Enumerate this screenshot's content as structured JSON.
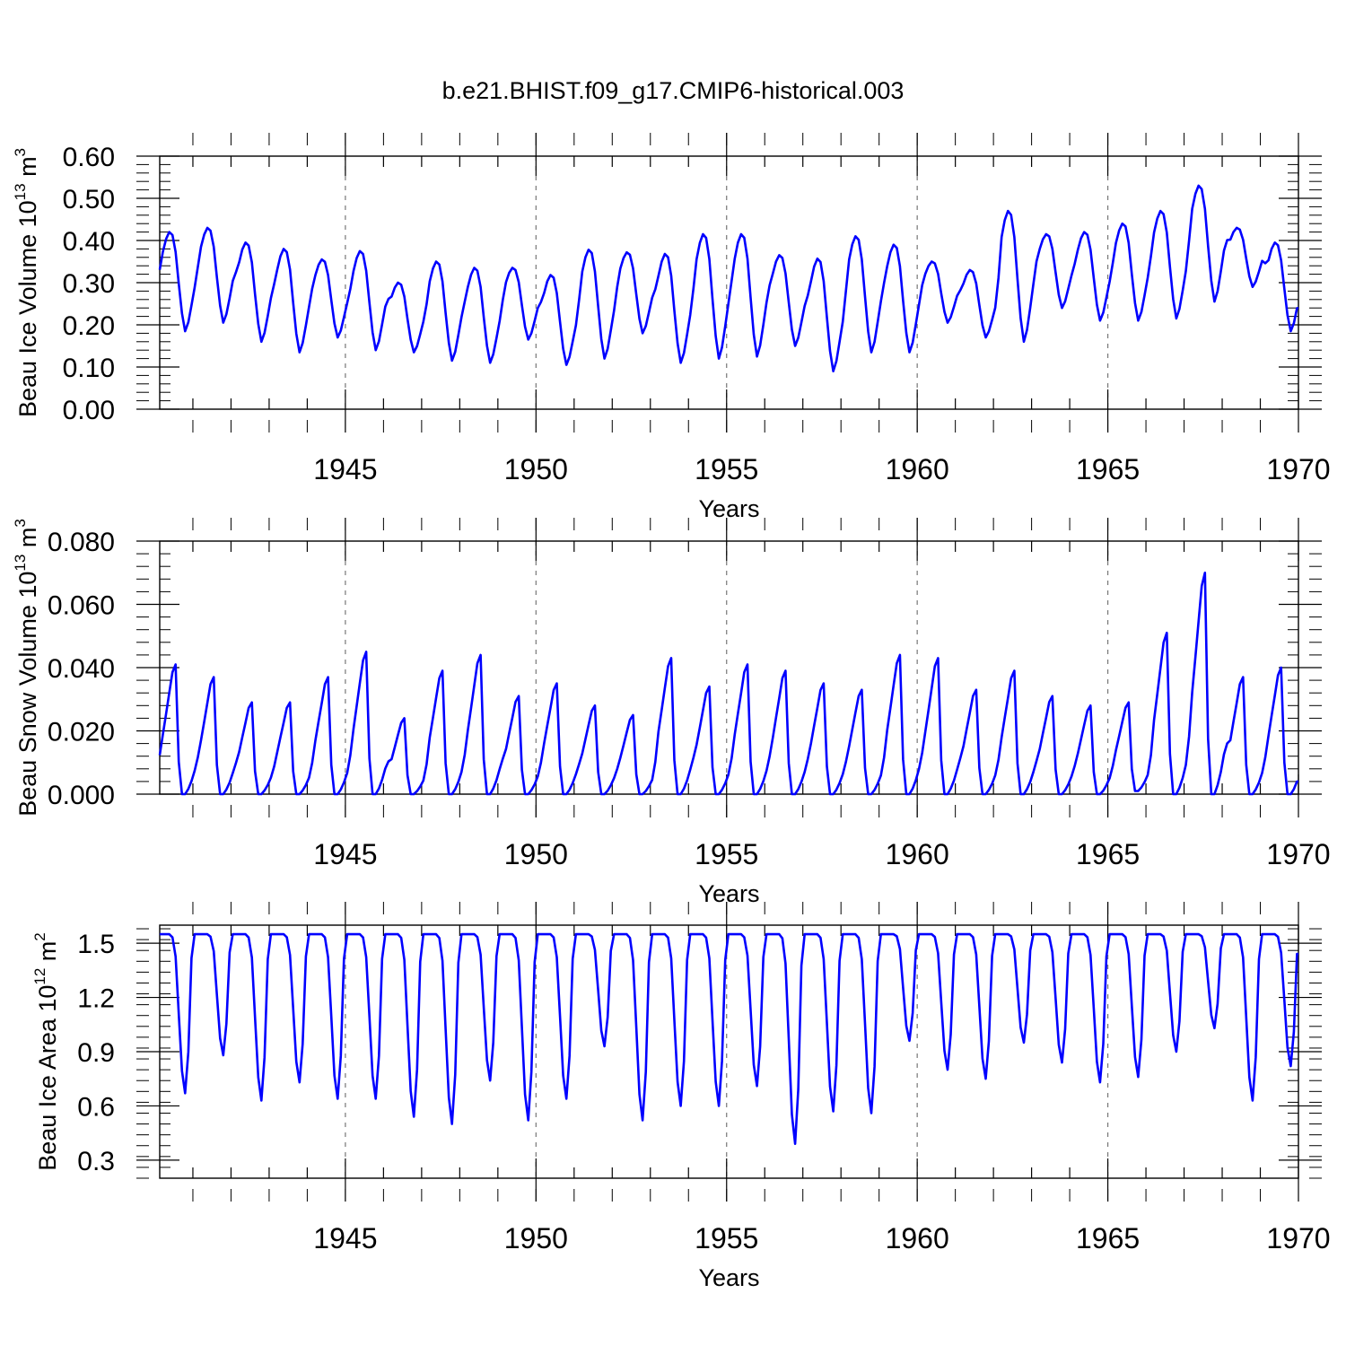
{
  "title": "b.e21.BHIST.f09_g17.CMIP6-historical.003",
  "colors": {
    "series": "#0000ff",
    "axes": "#000000",
    "grid": "#777777"
  },
  "chart_data": [
    {
      "type": "line",
      "name": "ice-volume",
      "ylabel": {
        "main": "Beau Ice Volume 10",
        "exp": "13",
        "unit": " m",
        "unit_exp": "3"
      },
      "xlabel": "Years",
      "xlim": [
        1940.13,
        1970.0
      ],
      "ylim": [
        0.0,
        0.6
      ],
      "yticks": [
        "0.00",
        "0.10",
        "0.20",
        "0.30",
        "0.40",
        "0.50",
        "0.60"
      ],
      "ytick_values": [
        0.0,
        0.1,
        0.2,
        0.3,
        0.4,
        0.5,
        0.6
      ],
      "xticks": [
        "1945",
        "1950",
        "1955",
        "1960",
        "1965",
        "1970"
      ],
      "xtick_values": [
        1945,
        1950,
        1955,
        1960,
        1965,
        1970
      ],
      "yearly_peaks": [
        0.42,
        0.43,
        0.395,
        0.38,
        0.355,
        0.375,
        0.3,
        0.35,
        0.335,
        0.335,
        0.318,
        0.378,
        0.372,
        0.368,
        0.415,
        0.415,
        0.365,
        0.357,
        0.41,
        0.39,
        0.35,
        0.33,
        0.47,
        0.415,
        0.42,
        0.44,
        0.47,
        0.53,
        0.43,
        0.395
      ],
      "yearly_troughs": [
        0.185,
        0.205,
        0.16,
        0.135,
        0.17,
        0.14,
        0.135,
        0.115,
        0.11,
        0.165,
        0.105,
        0.12,
        0.18,
        0.11,
        0.12,
        0.125,
        0.15,
        0.09,
        0.135,
        0.135,
        0.205,
        0.17,
        0.16,
        0.24,
        0.21,
        0.21,
        0.215,
        0.255,
        0.29,
        0.185
      ]
    },
    {
      "type": "line",
      "name": "snow-volume",
      "ylabel": {
        "main": "Beau Snow Volume 10",
        "exp": "13",
        "unit": " m",
        "unit_exp": "3"
      },
      "xlabel": "Years",
      "xlim": [
        1940.13,
        1970.0
      ],
      "ylim": [
        0.0,
        0.08
      ],
      "yticks": [
        "0.000",
        "0.020",
        "0.040",
        "0.060",
        "0.080"
      ],
      "ytick_values": [
        0.0,
        0.02,
        0.04,
        0.06,
        0.08
      ],
      "xticks": [
        "1945",
        "1950",
        "1955",
        "1960",
        "1965",
        "1970"
      ],
      "xtick_values": [
        1945,
        1950,
        1955,
        1960,
        1965,
        1970
      ],
      "yearly_peaks": [
        0.041,
        0.037,
        0.029,
        0.029,
        0.037,
        0.045,
        0.024,
        0.039,
        0.044,
        0.031,
        0.035,
        0.028,
        0.025,
        0.043,
        0.034,
        0.041,
        0.039,
        0.035,
        0.033,
        0.044,
        0.043,
        0.033,
        0.039,
        0.031,
        0.028,
        0.029,
        0.051,
        0.07,
        0.037,
        0.04
      ],
      "yearly_troughs": [
        0.0,
        0.0,
        0.0,
        0.0,
        0.0,
        0.0,
        0.0,
        0.0,
        0.0,
        0.0,
        0.0,
        0.0,
        0.0,
        0.0,
        0.0,
        0.0,
        0.0,
        0.0,
        0.0,
        0.0,
        0.0,
        0.0,
        0.0,
        0.0,
        0.0,
        0.001,
        0.0,
        0.0,
        0.0,
        0.0
      ]
    },
    {
      "type": "line",
      "name": "ice-area",
      "ylabel": {
        "main": "Beau Ice Area 10",
        "exp": "12",
        "unit": " m",
        "unit_exp": "2"
      },
      "xlabel": "Years",
      "xlim": [
        1940.13,
        1970.0
      ],
      "ylim": [
        0.2,
        1.6
      ],
      "yticks": [
        "0.3",
        "0.6",
        "0.9",
        "1.2",
        "1.5"
      ],
      "ytick_values": [
        0.3,
        0.6,
        0.9,
        1.2,
        1.5
      ],
      "xticks": [
        "1945",
        "1950",
        "1955",
        "1960",
        "1965",
        "1970"
      ],
      "xtick_values": [
        1945,
        1950,
        1955,
        1960,
        1965,
        1970
      ],
      "yearly_peaks": [
        1.55,
        1.55,
        1.55,
        1.55,
        1.55,
        1.55,
        1.55,
        1.55,
        1.55,
        1.55,
        1.55,
        1.55,
        1.55,
        1.55,
        1.55,
        1.55,
        1.55,
        1.55,
        1.55,
        1.55,
        1.55,
        1.55,
        1.55,
        1.55,
        1.55,
        1.55,
        1.55,
        1.55,
        1.55,
        1.55
      ],
      "yearly_troughs": [
        0.67,
        0.88,
        0.63,
        0.73,
        0.64,
        0.64,
        0.54,
        0.5,
        0.74,
        0.52,
        0.64,
        0.93,
        0.52,
        0.6,
        0.6,
        0.71,
        0.39,
        0.57,
        0.56,
        0.96,
        0.8,
        0.75,
        0.95,
        0.84,
        0.73,
        0.76,
        0.9,
        1.03,
        0.63,
        0.82
      ]
    }
  ]
}
